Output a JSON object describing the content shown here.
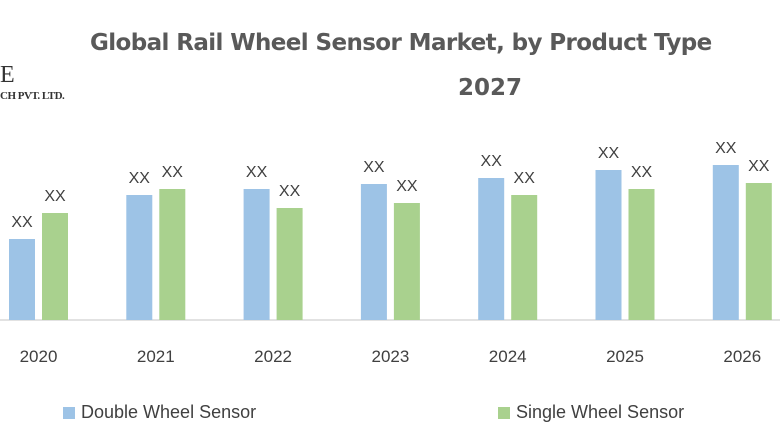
{
  "logo": {
    "line1": "E",
    "line2": "CH PVT. LTD."
  },
  "chart_data": {
    "type": "bar",
    "title_line1": "Global Rail Wheel Sensor Market, by Product Type",
    "title_line2": "2027",
    "categories": [
      "2020",
      "2021",
      "2022",
      "2023",
      "2024",
      "2025",
      "2026"
    ],
    "series": [
      {
        "name": "Double Wheel Sensor",
        "color": "#9DC3E6",
        "values": [
          81,
          125,
          131,
          136,
          142,
          150,
          155
        ],
        "labels": [
          "XX",
          "XX",
          "XX",
          "XX",
          "XX",
          "XX",
          "XX"
        ]
      },
      {
        "name": "Single Wheel Sensor",
        "color": "#A9D18E",
        "values": [
          107,
          131,
          112,
          117,
          125,
          131,
          137
        ],
        "labels": [
          "XX",
          "XX",
          "XX",
          "XX",
          "XX",
          "XX",
          "XX"
        ]
      }
    ],
    "xlabel": "",
    "ylabel": "",
    "grid": false,
    "legend_position": "bottom"
  }
}
